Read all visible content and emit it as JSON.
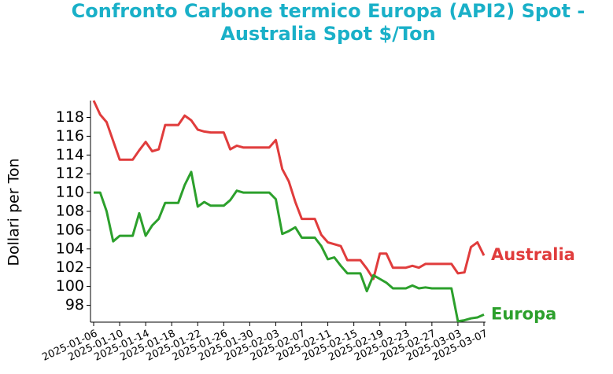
{
  "chart_data": {
    "type": "line",
    "title": [
      "Confronto Carbone termico Europa (API2) Spot -",
      "Australia Spot $/Ton"
    ],
    "ylabel": "Dollari per Ton",
    "x": [
      "2025-01-06",
      "2025-01-07",
      "2025-01-08",
      "2025-01-09",
      "2025-01-10",
      "2025-01-11",
      "2025-01-12",
      "2025-01-13",
      "2025-01-14",
      "2025-01-15",
      "2025-01-16",
      "2025-01-17",
      "2025-01-18",
      "2025-01-19",
      "2025-01-20",
      "2025-01-21",
      "2025-01-22",
      "2025-01-23",
      "2025-01-24",
      "2025-01-25",
      "2025-01-26",
      "2025-01-27",
      "2025-01-28",
      "2025-01-29",
      "2025-01-30",
      "2025-01-31",
      "2025-02-01",
      "2025-02-02",
      "2025-02-03",
      "2025-02-04",
      "2025-02-05",
      "2025-02-06",
      "2025-02-07",
      "2025-02-08",
      "2025-02-09",
      "2025-02-10",
      "2025-02-11",
      "2025-02-12",
      "2025-02-13",
      "2025-02-14",
      "2025-02-15",
      "2025-02-16",
      "2025-02-17",
      "2025-02-18",
      "2025-02-19",
      "2025-02-20",
      "2025-02-21",
      "2025-02-22",
      "2025-02-23",
      "2025-02-24",
      "2025-02-25",
      "2025-02-26",
      "2025-02-27",
      "2025-02-28",
      "2025-03-01",
      "2025-03-02",
      "2025-03-03",
      "2025-03-04",
      "2025-03-05",
      "2025-03-06",
      "2025-03-07"
    ],
    "series": [
      {
        "name": "Australia",
        "color": "#e03c3c",
        "values": [
          119.8,
          118.3,
          117.5,
          115.5,
          113.5,
          113.5,
          113.5,
          114.5,
          115.4,
          114.4,
          114.6,
          117.2,
          117.2,
          117.2,
          118.2,
          117.7,
          116.7,
          116.5,
          116.4,
          116.4,
          116.4,
          114.6,
          115.0,
          114.8,
          114.8,
          114.8,
          114.8,
          114.8,
          115.6,
          112.5,
          111.2,
          109.0,
          107.2,
          107.2,
          107.2,
          105.5,
          104.7,
          104.5,
          104.3,
          102.8,
          102.8,
          102.8,
          101.9,
          100.8,
          103.5,
          103.5,
          102.0,
          102.0,
          102.0,
          102.2,
          102.0,
          102.4,
          102.4,
          102.4,
          102.4,
          102.4,
          101.4,
          101.5,
          104.2,
          104.7,
          103.3
        ]
      },
      {
        "name": "Europa",
        "color": "#2ca02c",
        "values": [
          110.0,
          110.0,
          108.0,
          104.8,
          105.4,
          105.4,
          105.4,
          107.8,
          105.4,
          106.5,
          107.2,
          108.9,
          108.9,
          108.9,
          110.8,
          112.2,
          108.5,
          109.0,
          108.6,
          108.6,
          108.6,
          109.2,
          110.2,
          110.0,
          110.0,
          110.0,
          110.0,
          110.0,
          109.3,
          105.6,
          105.9,
          106.3,
          105.2,
          105.2,
          105.2,
          104.3,
          102.9,
          103.1,
          102.2,
          101.4,
          101.4,
          101.4,
          99.5,
          101.2,
          100.8,
          100.4,
          99.8,
          99.8,
          99.8,
          100.1,
          99.8,
          99.9,
          99.8,
          99.8,
          99.8,
          99.8,
          96.3,
          96.4,
          96.6,
          96.7,
          97.0
        ]
      }
    ],
    "xlim": [
      "2025-01-06",
      "2025-03-07"
    ],
    "xticks": [
      "2025-01-06",
      "2025-01-10",
      "2025-01-14",
      "2025-01-18",
      "2025-01-22",
      "2025-01-26",
      "2025-01-30",
      "2025-02-03",
      "2025-02-07",
      "2025-02-11",
      "2025-02-15",
      "2025-02-19",
      "2025-02-23",
      "2025-02-27",
      "2025-03-03",
      "2025-03-07"
    ],
    "ylim": [
      96.2,
      119.8
    ],
    "yticks": [
      98,
      100,
      102,
      104,
      106,
      108,
      110,
      112,
      114,
      116,
      118
    ]
  }
}
